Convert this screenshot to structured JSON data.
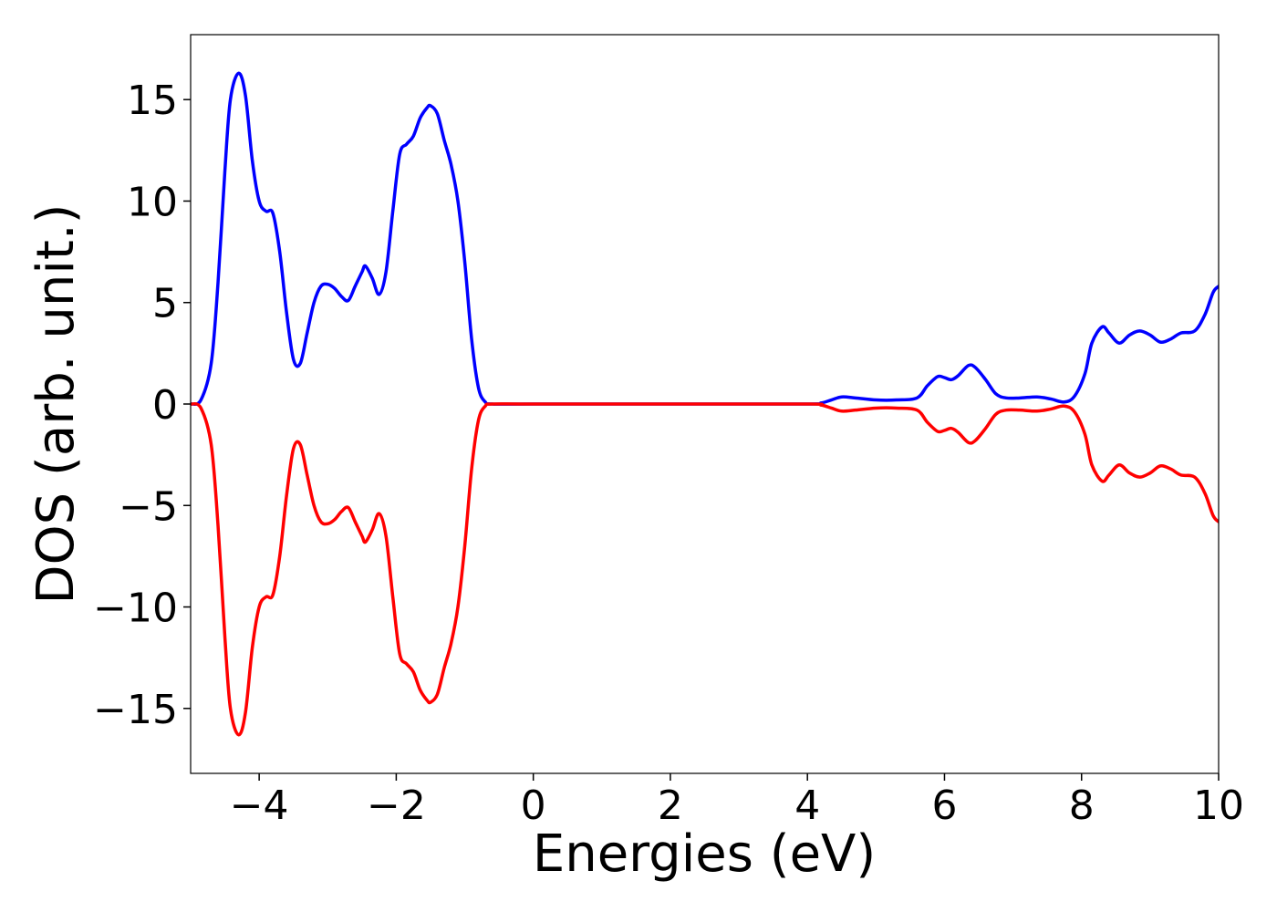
{
  "chart_data": {
    "type": "line",
    "title": "",
    "xlabel": "Energies (eV)",
    "ylabel": "DOS (arb. unit.)",
    "xlim": [
      -5,
      10
    ],
    "ylim": [
      -18.2,
      18.2
    ],
    "grid": false,
    "legend": null,
    "x_ticks": [
      -4,
      -2,
      0,
      2,
      4,
      6,
      8,
      10
    ],
    "x_tick_labels": [
      "−4",
      "−2",
      "0",
      "2",
      "4",
      "6",
      "8",
      "10"
    ],
    "y_ticks": [
      -15,
      -10,
      -5,
      0,
      5,
      10,
      15
    ],
    "y_tick_labels": [
      "−15",
      "−10",
      "−5",
      "0",
      "5",
      "10",
      "15"
    ],
    "series": [
      {
        "color": "#0000ff",
        "points": [
          [
            -5.0,
            0.0
          ],
          [
            -4.85,
            0.2
          ],
          [
            -4.7,
            2.0
          ],
          [
            -4.6,
            6.0
          ],
          [
            -4.5,
            11.5
          ],
          [
            -4.42,
            15.0
          ],
          [
            -4.3,
            16.3
          ],
          [
            -4.2,
            15.2
          ],
          [
            -4.1,
            12.0
          ],
          [
            -4.0,
            10.0
          ],
          [
            -3.9,
            9.5
          ],
          [
            -3.8,
            9.4
          ],
          [
            -3.7,
            7.5
          ],
          [
            -3.6,
            4.5
          ],
          [
            -3.5,
            2.2
          ],
          [
            -3.4,
            2.0
          ],
          [
            -3.3,
            3.5
          ],
          [
            -3.2,
            5.0
          ],
          [
            -3.1,
            5.8
          ],
          [
            -3.0,
            5.9
          ],
          [
            -2.9,
            5.7
          ],
          [
            -2.8,
            5.3
          ],
          [
            -2.7,
            5.1
          ],
          [
            -2.6,
            5.8
          ],
          [
            -2.5,
            6.5
          ],
          [
            -2.45,
            6.8
          ],
          [
            -2.35,
            6.2
          ],
          [
            -2.25,
            5.4
          ],
          [
            -2.15,
            6.5
          ],
          [
            -2.05,
            9.5
          ],
          [
            -1.95,
            12.3
          ],
          [
            -1.85,
            12.8
          ],
          [
            -1.75,
            13.2
          ],
          [
            -1.65,
            14.1
          ],
          [
            -1.55,
            14.6
          ],
          [
            -1.5,
            14.7
          ],
          [
            -1.4,
            14.3
          ],
          [
            -1.3,
            13.0
          ],
          [
            -1.2,
            11.8
          ],
          [
            -1.1,
            10.0
          ],
          [
            -1.0,
            7.0
          ],
          [
            -0.9,
            3.2
          ],
          [
            -0.8,
            0.8
          ],
          [
            -0.7,
            0.1
          ],
          [
            -0.6,
            0.0
          ],
          [
            0.0,
            0.0
          ],
          [
            2.0,
            0.0
          ],
          [
            4.0,
            0.0
          ],
          [
            4.2,
            0.05
          ],
          [
            4.35,
            0.2
          ],
          [
            4.5,
            0.35
          ],
          [
            4.7,
            0.3
          ],
          [
            5.0,
            0.2
          ],
          [
            5.3,
            0.2
          ],
          [
            5.6,
            0.3
          ],
          [
            5.75,
            0.9
          ],
          [
            5.9,
            1.35
          ],
          [
            6.0,
            1.3
          ],
          [
            6.1,
            1.2
          ],
          [
            6.2,
            1.4
          ],
          [
            6.35,
            1.9
          ],
          [
            6.45,
            1.8
          ],
          [
            6.6,
            1.2
          ],
          [
            6.75,
            0.5
          ],
          [
            6.9,
            0.3
          ],
          [
            7.1,
            0.3
          ],
          [
            7.35,
            0.35
          ],
          [
            7.55,
            0.25
          ],
          [
            7.75,
            0.1
          ],
          [
            7.9,
            0.4
          ],
          [
            8.05,
            1.5
          ],
          [
            8.15,
            3.0
          ],
          [
            8.3,
            3.8
          ],
          [
            8.4,
            3.5
          ],
          [
            8.55,
            3.0
          ],
          [
            8.7,
            3.4
          ],
          [
            8.85,
            3.6
          ],
          [
            9.0,
            3.4
          ],
          [
            9.15,
            3.05
          ],
          [
            9.3,
            3.2
          ],
          [
            9.45,
            3.5
          ],
          [
            9.65,
            3.6
          ],
          [
            9.8,
            4.4
          ],
          [
            9.92,
            5.5
          ],
          [
            10.0,
            5.8
          ]
        ]
      },
      {
        "color": "#ff0000",
        "points": [
          [
            -5.0,
            0.0
          ],
          [
            -4.85,
            -0.2
          ],
          [
            -4.7,
            -2.0
          ],
          [
            -4.6,
            -6.0
          ],
          [
            -4.5,
            -11.5
          ],
          [
            -4.42,
            -15.0
          ],
          [
            -4.3,
            -16.3
          ],
          [
            -4.2,
            -15.2
          ],
          [
            -4.1,
            -12.0
          ],
          [
            -4.0,
            -10.0
          ],
          [
            -3.9,
            -9.5
          ],
          [
            -3.8,
            -9.4
          ],
          [
            -3.7,
            -7.5
          ],
          [
            -3.6,
            -4.5
          ],
          [
            -3.5,
            -2.2
          ],
          [
            -3.4,
            -2.0
          ],
          [
            -3.3,
            -3.5
          ],
          [
            -3.2,
            -5.0
          ],
          [
            -3.1,
            -5.8
          ],
          [
            -3.0,
            -5.9
          ],
          [
            -2.9,
            -5.7
          ],
          [
            -2.8,
            -5.3
          ],
          [
            -2.7,
            -5.1
          ],
          [
            -2.6,
            -5.8
          ],
          [
            -2.5,
            -6.5
          ],
          [
            -2.45,
            -6.8
          ],
          [
            -2.35,
            -6.2
          ],
          [
            -2.25,
            -5.4
          ],
          [
            -2.15,
            -6.5
          ],
          [
            -2.05,
            -9.5
          ],
          [
            -1.95,
            -12.3
          ],
          [
            -1.85,
            -12.8
          ],
          [
            -1.75,
            -13.2
          ],
          [
            -1.65,
            -14.1
          ],
          [
            -1.55,
            -14.6
          ],
          [
            -1.5,
            -14.7
          ],
          [
            -1.4,
            -14.3
          ],
          [
            -1.3,
            -13.0
          ],
          [
            -1.2,
            -11.8
          ],
          [
            -1.1,
            -10.0
          ],
          [
            -1.0,
            -7.0
          ],
          [
            -0.9,
            -3.2
          ],
          [
            -0.8,
            -0.8
          ],
          [
            -0.7,
            -0.1
          ],
          [
            -0.6,
            0.0
          ],
          [
            0.0,
            0.0
          ],
          [
            2.0,
            0.0
          ],
          [
            4.0,
            0.0
          ],
          [
            4.2,
            -0.05
          ],
          [
            4.35,
            -0.2
          ],
          [
            4.5,
            -0.35
          ],
          [
            4.7,
            -0.3
          ],
          [
            5.0,
            -0.2
          ],
          [
            5.3,
            -0.2
          ],
          [
            5.6,
            -0.3
          ],
          [
            5.75,
            -0.9
          ],
          [
            5.9,
            -1.35
          ],
          [
            6.0,
            -1.3
          ],
          [
            6.1,
            -1.2
          ],
          [
            6.2,
            -1.4
          ],
          [
            6.35,
            -1.9
          ],
          [
            6.45,
            -1.8
          ],
          [
            6.6,
            -1.2
          ],
          [
            6.75,
            -0.5
          ],
          [
            6.9,
            -0.3
          ],
          [
            7.1,
            -0.3
          ],
          [
            7.35,
            -0.35
          ],
          [
            7.55,
            -0.25
          ],
          [
            7.75,
            -0.1
          ],
          [
            7.9,
            -0.4
          ],
          [
            8.05,
            -1.5
          ],
          [
            8.15,
            -3.0
          ],
          [
            8.3,
            -3.8
          ],
          [
            8.4,
            -3.5
          ],
          [
            8.55,
            -3.0
          ],
          [
            8.7,
            -3.4
          ],
          [
            8.85,
            -3.6
          ],
          [
            9.0,
            -3.4
          ],
          [
            9.15,
            -3.05
          ],
          [
            9.3,
            -3.2
          ],
          [
            9.45,
            -3.5
          ],
          [
            9.65,
            -3.6
          ],
          [
            9.8,
            -4.4
          ],
          [
            9.92,
            -5.5
          ],
          [
            10.0,
            -5.8
          ]
        ]
      }
    ]
  }
}
